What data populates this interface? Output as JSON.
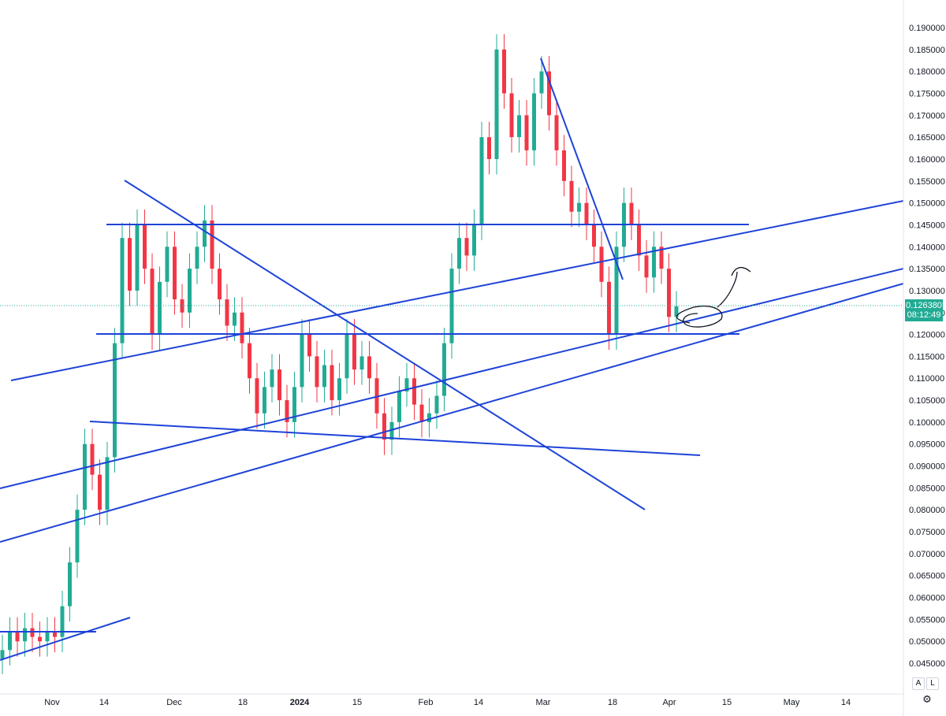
{
  "chart_data": {
    "type": "candlestick",
    "title": "",
    "price_axis_labels": [
      "0.190000",
      "0.185000",
      "0.180000",
      "0.175000",
      "0.170000",
      "0.165000",
      "0.160000",
      "0.155000",
      "0.150000",
      "0.145000",
      "0.140000",
      "0.135000",
      "0.130000",
      "0.125000",
      "0.120000",
      "0.115000",
      "0.110000",
      "0.105000",
      "0.100000",
      "0.095000",
      "0.090000",
      "0.085000",
      "0.080000",
      "0.075000",
      "0.070000",
      "0.065000",
      "0.060000",
      "0.055000",
      "0.050000",
      "0.045000"
    ],
    "time_axis_labels": [
      "Nov",
      "14",
      "Dec",
      "18",
      "2024",
      "15",
      "Feb",
      "14",
      "Mar",
      "18",
      "Apr",
      "15",
      "May",
      "14"
    ],
    "ylim": [
      0.042,
      0.192
    ],
    "last_price": "0.126380",
    "countdown": "08:12:49",
    "colors": {
      "up": "#22ab94",
      "down": "#f23645",
      "trendline": "#1e43d8",
      "price_tag": "#22ab94"
    },
    "candles_approx": [
      [
        0.046,
        0.048
      ],
      [
        0.048,
        0.052
      ],
      [
        0.052,
        0.05
      ],
      [
        0.05,
        0.053
      ],
      [
        0.053,
        0.051
      ],
      [
        0.051,
        0.05
      ],
      [
        0.05,
        0.052
      ],
      [
        0.052,
        0.051
      ],
      [
        0.051,
        0.058
      ],
      [
        0.058,
        0.068
      ],
      [
        0.068,
        0.08
      ],
      [
        0.08,
        0.095
      ],
      [
        0.095,
        0.088
      ],
      [
        0.088,
        0.08
      ],
      [
        0.08,
        0.092
      ],
      [
        0.092,
        0.118
      ],
      [
        0.118,
        0.142
      ],
      [
        0.142,
        0.13
      ],
      [
        0.13,
        0.145
      ],
      [
        0.145,
        0.135
      ],
      [
        0.135,
        0.12
      ],
      [
        0.12,
        0.132
      ],
      [
        0.132,
        0.14
      ],
      [
        0.14,
        0.128
      ],
      [
        0.128,
        0.125
      ],
      [
        0.125,
        0.135
      ],
      [
        0.135,
        0.14
      ],
      [
        0.14,
        0.146
      ],
      [
        0.146,
        0.135
      ],
      [
        0.135,
        0.128
      ],
      [
        0.128,
        0.122
      ],
      [
        0.122,
        0.125
      ],
      [
        0.125,
        0.118
      ],
      [
        0.118,
        0.11
      ],
      [
        0.11,
        0.102
      ],
      [
        0.102,
        0.108
      ],
      [
        0.108,
        0.112
      ],
      [
        0.112,
        0.105
      ],
      [
        0.105,
        0.1
      ],
      [
        0.1,
        0.108
      ],
      [
        0.108,
        0.12
      ],
      [
        0.12,
        0.115
      ],
      [
        0.115,
        0.108
      ],
      [
        0.108,
        0.113
      ],
      [
        0.113,
        0.105
      ],
      [
        0.105,
        0.11
      ],
      [
        0.11,
        0.12
      ],
      [
        0.12,
        0.112
      ],
      [
        0.112,
        0.115
      ],
      [
        0.115,
        0.11
      ],
      [
        0.11,
        0.102
      ],
      [
        0.102,
        0.096
      ],
      [
        0.096,
        0.1
      ],
      [
        0.1,
        0.107
      ],
      [
        0.107,
        0.11
      ],
      [
        0.11,
        0.104
      ],
      [
        0.104,
        0.1
      ],
      [
        0.1,
        0.102
      ],
      [
        0.102,
        0.106
      ],
      [
        0.106,
        0.118
      ],
      [
        0.118,
        0.135
      ],
      [
        0.135,
        0.142
      ],
      [
        0.142,
        0.138
      ],
      [
        0.138,
        0.145
      ],
      [
        0.145,
        0.165
      ],
      [
        0.165,
        0.16
      ],
      [
        0.16,
        0.185
      ],
      [
        0.185,
        0.175
      ],
      [
        0.175,
        0.165
      ],
      [
        0.165,
        0.17
      ],
      [
        0.17,
        0.162
      ],
      [
        0.162,
        0.175
      ],
      [
        0.175,
        0.18
      ],
      [
        0.18,
        0.17
      ],
      [
        0.17,
        0.162
      ],
      [
        0.162,
        0.155
      ],
      [
        0.155,
        0.148
      ],
      [
        0.148,
        0.15
      ],
      [
        0.15,
        0.145
      ],
      [
        0.145,
        0.14
      ],
      [
        0.14,
        0.132
      ],
      [
        0.132,
        0.12
      ],
      [
        0.12,
        0.14
      ],
      [
        0.14,
        0.15
      ],
      [
        0.15,
        0.145
      ],
      [
        0.145,
        0.138
      ],
      [
        0.138,
        0.133
      ],
      [
        0.133,
        0.14
      ],
      [
        0.14,
        0.135
      ],
      [
        0.135,
        0.124
      ],
      [
        0.124,
        0.1264
      ]
    ]
  }
}
